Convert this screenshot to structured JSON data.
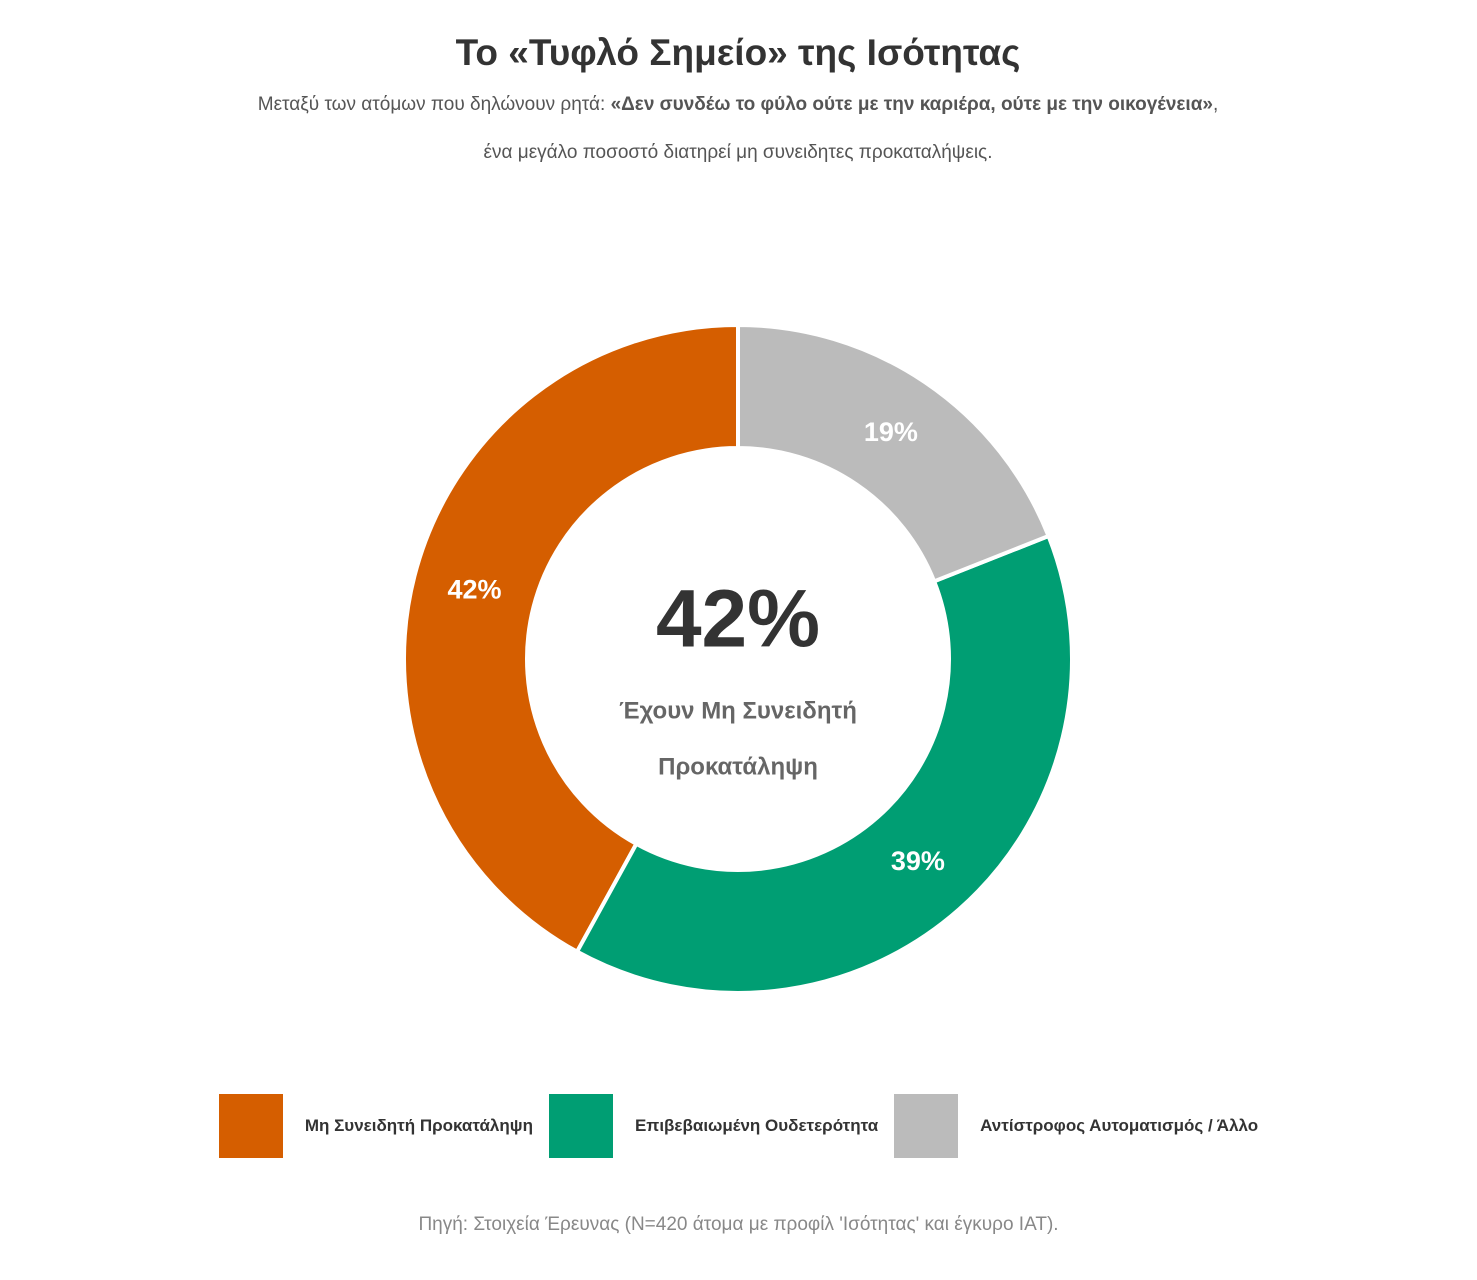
{
  "chart_data": {
    "type": "pie",
    "title": "Το «Τυφλό Σημείο» της Ισότητας",
    "subtitle": {
      "line1_prefix": "Μεταξύ των ατόμων που δηλώνουν ρητά: ",
      "line1_bold": "«Δεν συνδέω το φύλο ούτε με την καριέρα, ούτε με την οικογένεια»",
      "line1_suffix": ",",
      "line2": "ένα μεγάλο ποσοστό διατηρεί μη συνειδητες προκαταλήψεις."
    },
    "categories": [
      "Μη Συνειδητή Προκατάληψη",
      "Επιβεβαιωμένη Ουδετερότητα",
      "Αντίστροφος Αυτοματισμός / Άλλο"
    ],
    "values": [
      42,
      39,
      19
    ],
    "value_labels": [
      "42%",
      "39%",
      "19%"
    ],
    "colors": [
      "#d55e00",
      "#009e73",
      "#bbbbbb"
    ],
    "direction": "counterclockwise",
    "center_value": "42%",
    "center_caption": [
      "Έχουν Μη Συνειδητή",
      "Προκατάληψη"
    ],
    "source": "Πηγή: Στοιχεία Έρευνας (N=420 άτομα με προφίλ 'Ισότητας' και έγκυρο IAT)."
  }
}
